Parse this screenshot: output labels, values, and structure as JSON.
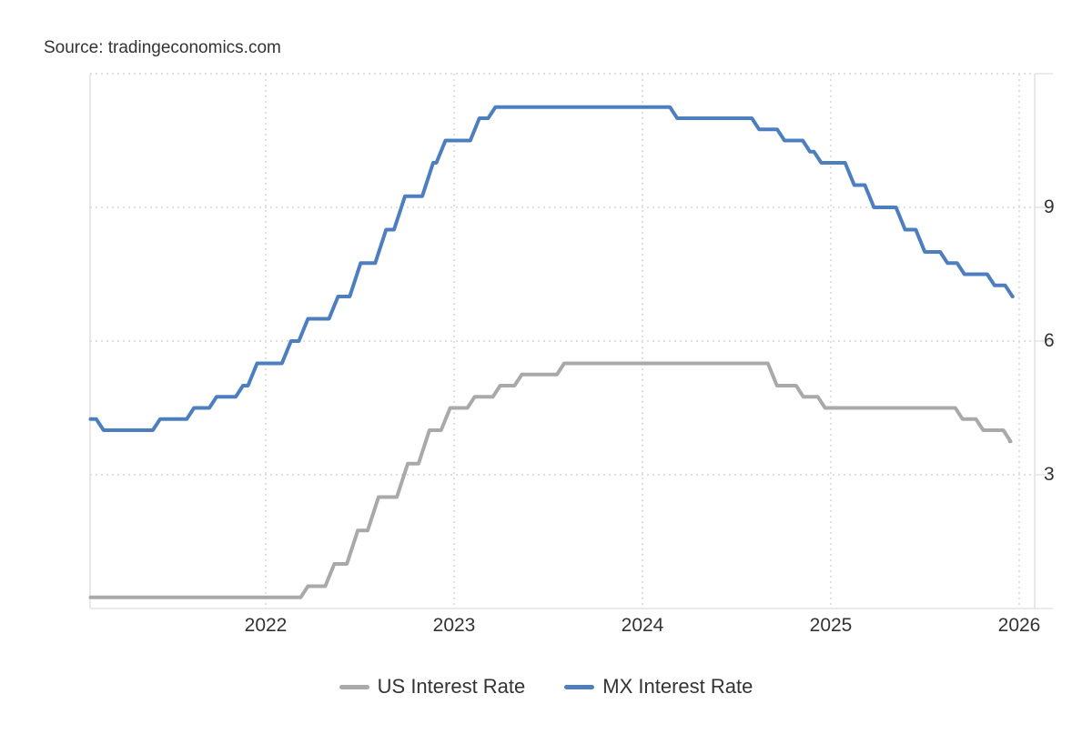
{
  "source": "Source: tradingeconomics.com",
  "colors": {
    "background": "#ffffff",
    "text": "#333333",
    "grid": "#e0e0e0",
    "axis": "#e3e3e3",
    "us_series": "#a9a9a9",
    "mx_series": "#4d7ebf"
  },
  "chart_data": {
    "type": "line",
    "title": "",
    "xlabel": "",
    "ylabel": "",
    "grid": "dotted",
    "legend_position": "bottom",
    "x_axis": {
      "tick_labels": [
        "2022",
        "2023",
        "2024",
        "2025",
        "2026"
      ],
      "tick_years": [
        2022,
        2023,
        2024,
        2025,
        2026
      ],
      "min": 2021.07,
      "max": 2026.09
    },
    "y_axis": {
      "tick_labels": [
        "9",
        "6",
        "3"
      ],
      "label_values": [
        9,
        6,
        3
      ],
      "gridline_values": [
        12,
        9,
        6,
        3
      ],
      "tick_values": [
        12,
        9,
        6,
        3,
        0
      ],
      "min": 0,
      "max": 12.05
    },
    "series": [
      {
        "name": "US Interest Rate",
        "color": "#a9a9a9",
        "end": 2025.95,
        "points": [
          [
            2021.07,
            0.25
          ],
          [
            2022.205,
            0.5
          ],
          [
            2022.34,
            1.0
          ],
          [
            2022.46,
            1.75
          ],
          [
            2022.57,
            2.5
          ],
          [
            2022.725,
            3.25
          ],
          [
            2022.84,
            4.0
          ],
          [
            2022.955,
            4.5
          ],
          [
            2023.09,
            4.75
          ],
          [
            2023.225,
            5.0
          ],
          [
            2023.34,
            5.25
          ],
          [
            2023.565,
            5.5
          ],
          [
            2024.69,
            5.0
          ],
          [
            2024.835,
            4.75
          ],
          [
            2024.95,
            4.5
          ],
          [
            2025.68,
            4.25
          ],
          [
            2025.79,
            4.0
          ],
          [
            2025.935,
            3.75
          ]
        ]
      },
      {
        "name": "MX Interest Rate",
        "color": "#4d7ebf",
        "end": 2025.965,
        "points": [
          [
            2021.07,
            4.25
          ],
          [
            2021.12,
            4.0
          ],
          [
            2021.42,
            4.25
          ],
          [
            2021.6,
            4.5
          ],
          [
            2021.72,
            4.75
          ],
          [
            2021.86,
            5.0
          ],
          [
            2021.93,
            5.5
          ],
          [
            2022.11,
            6.0
          ],
          [
            2022.2,
            6.5
          ],
          [
            2022.36,
            7.0
          ],
          [
            2022.475,
            7.75
          ],
          [
            2022.61,
            8.5
          ],
          [
            2022.71,
            9.25
          ],
          [
            2022.86,
            10.0
          ],
          [
            2022.93,
            10.5
          ],
          [
            2023.11,
            11.0
          ],
          [
            2023.2,
            11.25
          ],
          [
            2024.165,
            11.0
          ],
          [
            2024.6,
            10.75
          ],
          [
            2024.735,
            10.5
          ],
          [
            2024.87,
            10.25
          ],
          [
            2024.93,
            10.0
          ],
          [
            2025.1,
            9.5
          ],
          [
            2025.205,
            9.0
          ],
          [
            2025.37,
            8.5
          ],
          [
            2025.475,
            8.0
          ],
          [
            2025.6,
            7.75
          ],
          [
            2025.69,
            7.5
          ],
          [
            2025.85,
            7.25
          ],
          [
            2025.945,
            7.0
          ]
        ]
      }
    ]
  },
  "legend": {
    "items": [
      {
        "label": "US Interest Rate",
        "color": "#a9a9a9"
      },
      {
        "label": "MX Interest Rate",
        "color": "#4d7ebf"
      }
    ]
  }
}
